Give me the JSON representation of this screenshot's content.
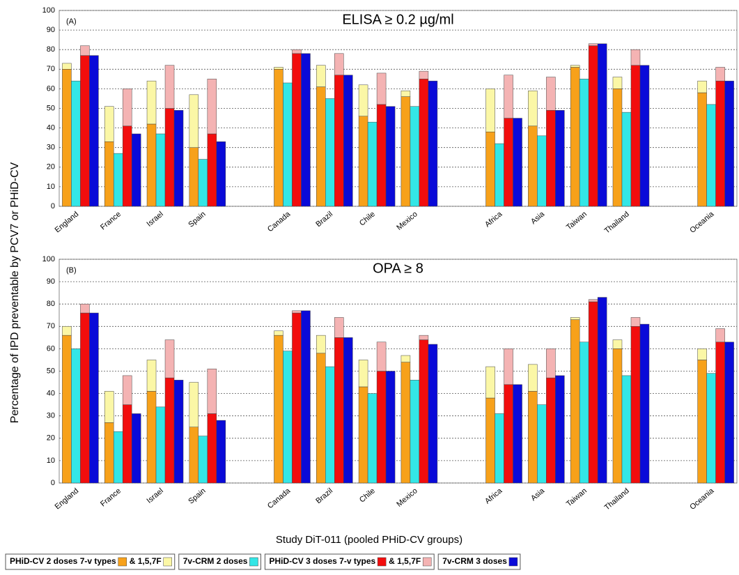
{
  "chart_data": {
    "type": "bar",
    "ylabel": "Percentage of IPD preventable by PCV7 or PHiD-CV",
    "xlabel": "Study DiT-011 (pooled PHiD-CV groups)",
    "grid": true,
    "categories": [
      "England",
      "France",
      "Israel",
      "Spain",
      null,
      "Canada",
      "Brazil",
      "Chile",
      "Mexico",
      null,
      "Africa",
      "Asia",
      "Taiwan",
      "Thailand",
      null,
      "Oceania"
    ],
    "bars": [
      [
        0,
        1
      ],
      [
        2
      ],
      [
        3,
        4
      ],
      [
        5
      ]
    ],
    "series": [
      {
        "name": "PHiD-CV 2 doses 7-v types",
        "color": "#f7a11a",
        "values": [
          [
            70,
            33,
            42,
            30,
            null,
            70,
            61,
            46,
            56,
            null,
            38,
            41,
            71,
            60,
            null,
            58
          ],
          [
            66,
            27,
            41,
            25,
            null,
            66,
            58,
            43,
            54,
            null,
            38,
            41,
            73,
            60,
            null,
            55
          ]
        ]
      },
      {
        "name": "& 1,5,7F",
        "color": "#fbf7a6",
        "values": [
          [
            3,
            18,
            22,
            27,
            null,
            1,
            11,
            16,
            3,
            null,
            22,
            18,
            1,
            6,
            null,
            6
          ],
          [
            4,
            14,
            14,
            20,
            null,
            2,
            8,
            12,
            3,
            null,
            14,
            12,
            1,
            4,
            null,
            5
          ]
        ]
      },
      {
        "name": "7v-CRM 2 doses",
        "color": "#33e6e6",
        "values": [
          [
            64,
            27,
            37,
            24,
            null,
            63,
            55,
            43,
            51,
            null,
            32,
            36,
            65,
            48,
            null,
            52
          ],
          [
            60,
            23,
            34,
            21,
            null,
            59,
            52,
            40,
            46,
            null,
            31,
            35,
            63,
            48,
            null,
            49
          ]
        ]
      },
      {
        "name": "PHiD-CV 3 doses 7-v types",
        "color": "#f20d0d",
        "values": [
          [
            77,
            41,
            50,
            37,
            null,
            78,
            67,
            52,
            65,
            null,
            45,
            49,
            82,
            72,
            null,
            64
          ],
          [
            76,
            35,
            47,
            31,
            null,
            76,
            65,
            50,
            64,
            null,
            44,
            47,
            81,
            70,
            null,
            63
          ]
        ]
      },
      {
        "name": "& 1,5,7F",
        "color": "#f4b3b3",
        "values": [
          [
            5,
            19,
            22,
            28,
            null,
            2,
            11,
            16,
            4,
            null,
            22,
            17,
            1,
            8,
            null,
            7
          ],
          [
            4,
            13,
            17,
            20,
            null,
            1,
            9,
            13,
            2,
            null,
            16,
            13,
            1,
            4,
            null,
            6
          ]
        ]
      },
      {
        "name": "7v-CRM 3 doses",
        "color": "#0a0ad8",
        "values": [
          [
            77,
            37,
            49,
            33,
            null,
            78,
            67,
            51,
            64,
            null,
            45,
            49,
            83,
            72,
            null,
            64
          ],
          [
            76,
            31,
            46,
            28,
            null,
            77,
            65,
            50,
            62,
            null,
            44,
            48,
            83,
            71,
            null,
            63
          ]
        ]
      }
    ],
    "panels": [
      {
        "label": "(A)",
        "title": "ELISA ≥ 0.2 µg/ml",
        "ylim": [
          0,
          100
        ],
        "yticks": [
          0,
          10,
          20,
          30,
          40,
          50,
          60,
          70,
          80,
          90,
          100
        ]
      },
      {
        "label": "(B)",
        "title": "OPA ≥ 8",
        "ylim": [
          0,
          100
        ],
        "yticks": [
          0,
          10,
          20,
          30,
          40,
          50,
          60,
          70,
          80,
          90,
          100
        ]
      }
    ]
  }
}
